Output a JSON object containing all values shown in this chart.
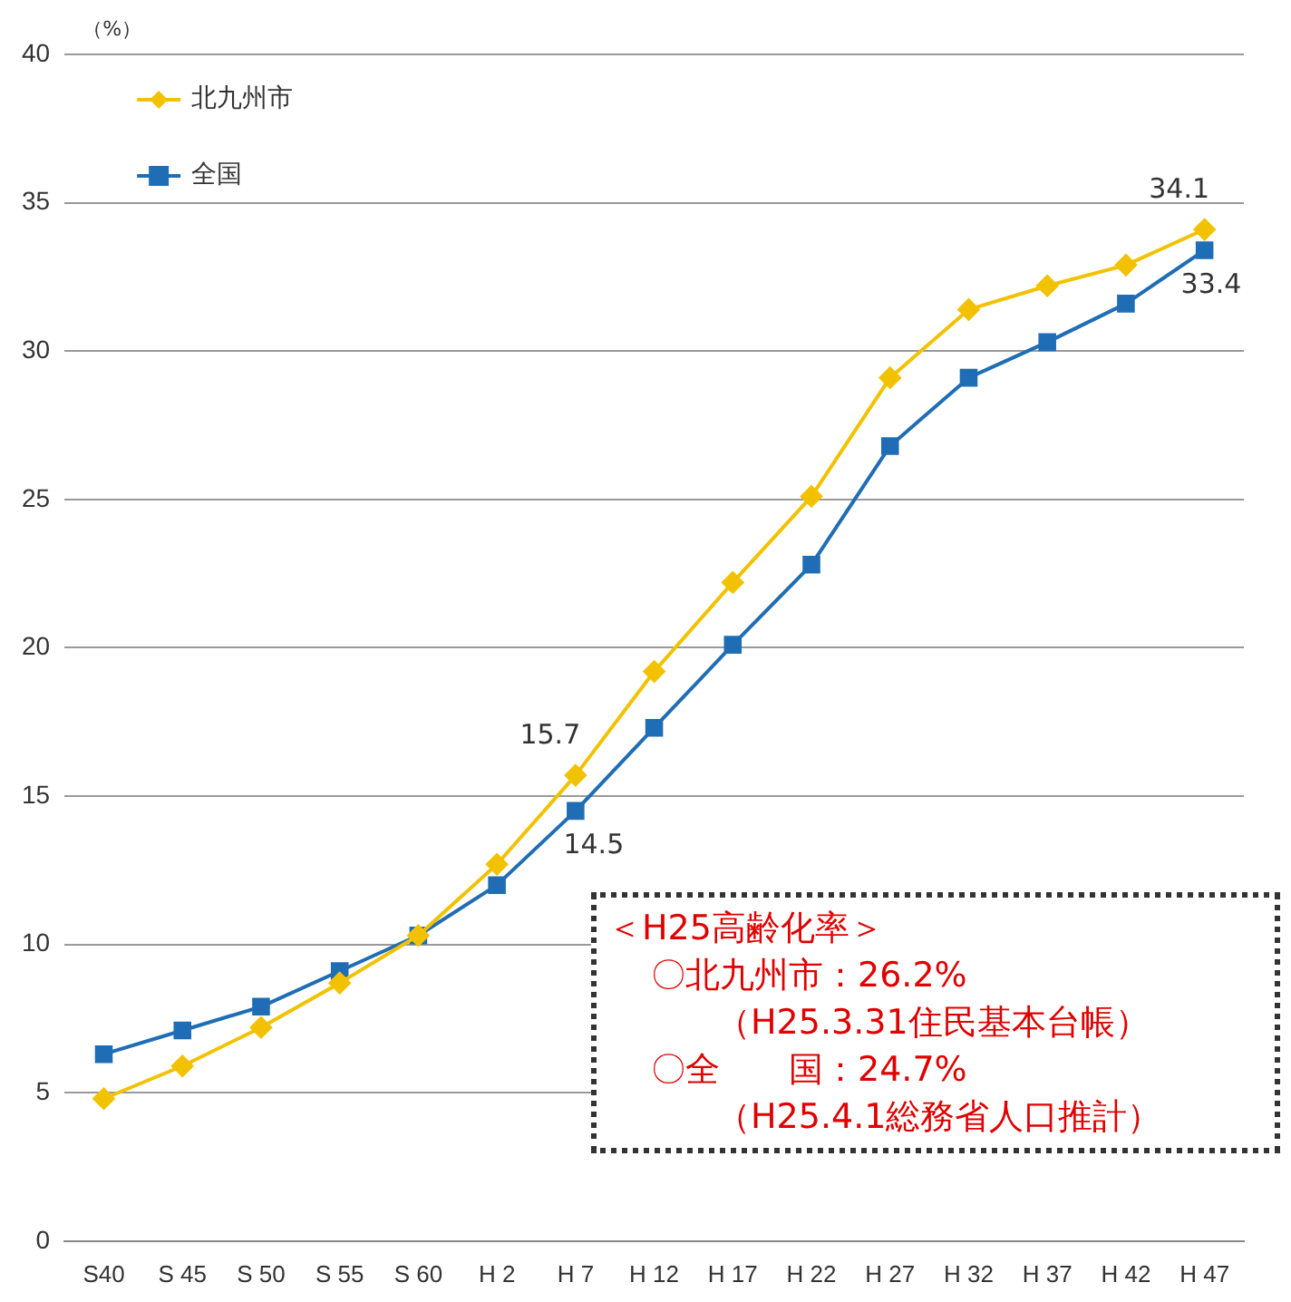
{
  "chart_data": {
    "type": "line",
    "ylabel": "（%）",
    "categories": [
      "S40",
      "S 45",
      "S 50",
      "S 55",
      "S 60",
      "H 2",
      "H 7",
      "H 12",
      "H 17",
      "H 22",
      "H 27",
      "H 32",
      "H 37",
      "H 42",
      "H 47"
    ],
    "series": [
      {
        "name": "北九州市",
        "color": "#f2c200",
        "marker": "diamond",
        "values": [
          4.8,
          5.9,
          7.2,
          8.7,
          10.3,
          12.7,
          15.7,
          19.2,
          22.2,
          25.1,
          29.1,
          31.4,
          32.2,
          32.9,
          34.1
        ],
        "value_labels": [
          null,
          null,
          null,
          null,
          null,
          null,
          "15.7",
          null,
          null,
          null,
          null,
          null,
          null,
          null,
          "34.1"
        ]
      },
      {
        "name": "全国",
        "color": "#1f6db5",
        "marker": "square",
        "values": [
          6.3,
          7.1,
          7.9,
          9.1,
          10.3,
          12.0,
          14.5,
          17.3,
          20.1,
          22.8,
          26.8,
          29.1,
          30.3,
          31.6,
          33.4
        ],
        "value_labels": [
          null,
          null,
          null,
          null,
          null,
          null,
          "14.5",
          null,
          null,
          null,
          null,
          null,
          null,
          null,
          "33.4"
        ]
      }
    ],
    "ylim": [
      0,
      40
    ],
    "yticks": [
      0,
      5,
      10,
      15,
      20,
      25,
      30,
      35,
      40
    ],
    "grid": "y",
    "legend": "top left",
    "annotations": [
      "＜H25高齢化率＞",
      "〇北九州市：26.2%",
      "（H25.3.31住民基本台帳）",
      "〇全　　国：24.7%",
      "（H25.4.1総務省人口推計）"
    ]
  }
}
